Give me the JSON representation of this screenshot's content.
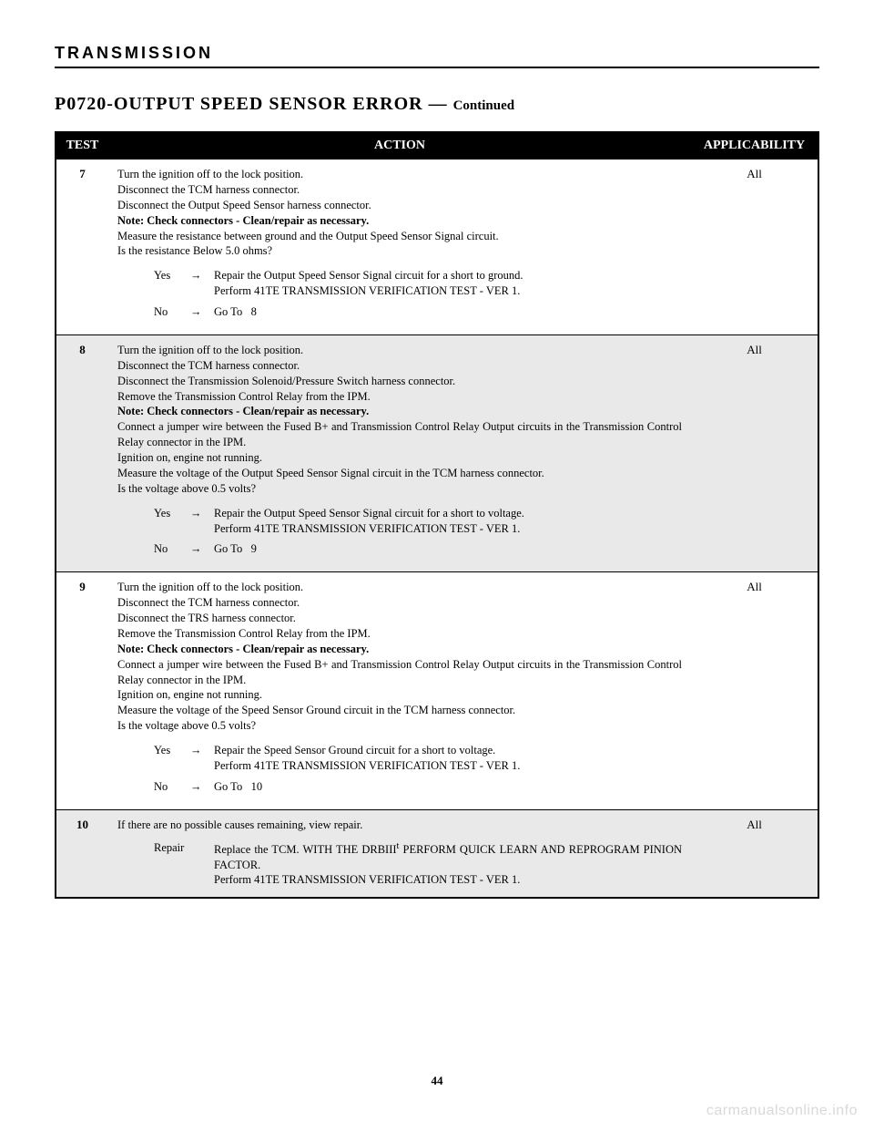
{
  "section_header": "TRANSMISSION",
  "title_main": "P0720-OUTPUT SPEED SENSOR ERROR —",
  "title_continued": "Continued",
  "table": {
    "headers": {
      "test": "TEST",
      "action": "ACTION",
      "applicability": "APPLICABILITY"
    },
    "rows": [
      {
        "num": "7",
        "applic": "All",
        "lines": [
          "Turn the ignition off to the lock position.",
          "Disconnect the TCM harness connector.",
          "Disconnect the Output Speed Sensor harness connector.",
          "<b>Note: Check connectors - Clean/repair as necessary.</b>",
          "Measure the resistance between ground and the Output Speed Sensor Signal circuit.",
          "Is the resistance Below 5.0 ohms?"
        ],
        "yes": "Repair the Output Speed Sensor Signal circuit for a short to ground.<br>Perform 41TE TRANSMISSION VERIFICATION TEST - VER 1.",
        "no": "Go To&nbsp;&nbsp;&nbsp;8"
      },
      {
        "num": "8",
        "applic": "All",
        "lines": [
          "Turn the ignition off to the lock position.",
          "Disconnect the TCM harness connector.",
          "Disconnect the Transmission Solenoid/Pressure Switch harness connector.",
          "Remove the Transmission Control Relay from the IPM.",
          "<b>Note: Check connectors - Clean/repair as necessary.</b>",
          "Connect a jumper wire between the Fused B+ and Transmission Control Relay Output circuits in the Transmission Control Relay connector in the IPM.",
          "Ignition on, engine not running.",
          "Measure the voltage of the Output Speed Sensor Signal circuit in the TCM harness connector.",
          "Is the voltage above 0.5 volts?"
        ],
        "yes": "Repair the Output Speed Sensor Signal circuit for a short to voltage.<br>Perform 41TE TRANSMISSION VERIFICATION TEST - VER 1.",
        "no": "Go To&nbsp;&nbsp;&nbsp;9"
      },
      {
        "num": "9",
        "applic": "All",
        "lines": [
          "Turn the ignition off to the lock position.",
          "Disconnect the TCM harness connector.",
          "Disconnect the TRS harness connector.",
          "Remove the Transmission Control Relay from the IPM.",
          "<b>Note: Check connectors - Clean/repair as necessary.</b>",
          "Connect a jumper wire between the Fused B+ and Transmission Control Relay Output circuits in the Transmission Control Relay connector in the IPM.",
          "Ignition on, engine not running.",
          "Measure the voltage of the Speed Sensor Ground circuit in the TCM harness connector.",
          "Is the voltage above 0.5 volts?"
        ],
        "yes": "Repair the Speed Sensor Ground circuit for a short to voltage.<br>Perform 41TE TRANSMISSION VERIFICATION TEST - VER 1.",
        "no": "Go To&nbsp;&nbsp;&nbsp;10"
      },
      {
        "num": "10",
        "applic": "All",
        "lines": [
          "If there are no possible causes remaining, view repair."
        ],
        "repair": "Replace the TCM. WITH THE DRBIII<sup>t</sup> PERFORM QUICK LEARN AND REPROGRAM PINION FACTOR.<br>Perform 41TE TRANSMISSION VERIFICATION TEST - VER 1."
      }
    ]
  },
  "yes_label": "Yes",
  "no_label": "No",
  "arrow": "→",
  "repair_label": "Repair",
  "page_number": "44",
  "watermark": "carmanualsonline.info"
}
